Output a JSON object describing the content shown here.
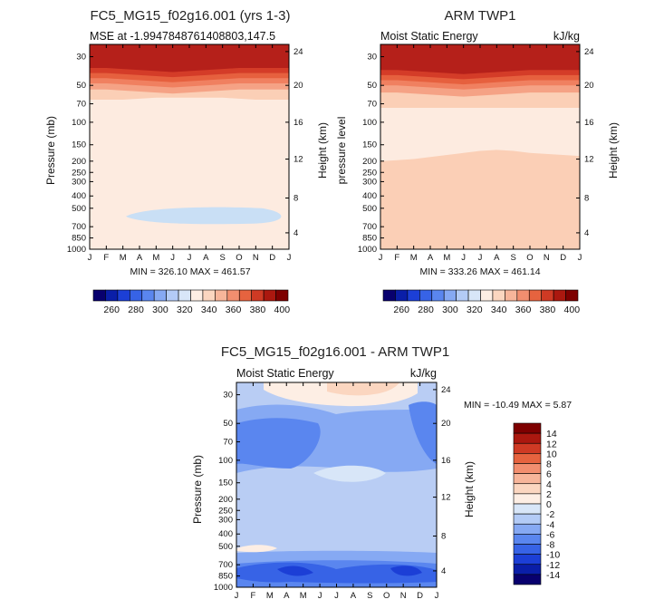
{
  "chart_data": [
    {
      "type": "heatmap",
      "title": "FC5_MG15_f02g16.001 (yrs 1-3)",
      "subtitle_left": "MSE at -1.9947848761408803,147.5",
      "subtitle_right": "",
      "ylabel_left": "Pressure (mb)",
      "ylabel_right": "Height (km)",
      "x_ticks": [
        "J",
        "F",
        "M",
        "A",
        "M",
        "J",
        "J",
        "A",
        "S",
        "O",
        "N",
        "D",
        "J"
      ],
      "y_ticks": [
        "30",
        "50",
        "70",
        "100",
        "150",
        "200",
        "250",
        "300",
        "400",
        "500",
        "700",
        "850",
        "1000"
      ],
      "height_ticks": [
        "24",
        "20",
        "16",
        "12",
        "8",
        "4"
      ],
      "stats": "MIN = 326.10 MAX = 461.57",
      "colorbar_labels": [
        "260",
        "280",
        "300",
        "320",
        "340",
        "360",
        "380",
        "400"
      ],
      "bands": [
        {
          "fill": "#c9dff5",
          "top": [
            0.845,
            0.84,
            0.835,
            0.83,
            0.83,
            0.83,
            0.83,
            0.83,
            0.835,
            0.835,
            0.84,
            0.845,
            0.85
          ],
          "shape": "blob"
        },
        {
          "fill": "#fdebe0",
          "top": [
            0.52,
            0.51,
            0.51,
            0.5,
            0.49,
            0.48,
            0.47,
            0.47,
            0.47,
            0.47,
            0.48,
            0.48,
            0.48
          ]
        },
        {
          "fill": "#fbcfb6",
          "top": [
            0.27,
            0.27,
            0.27,
            0.265,
            0.26,
            0.26,
            0.26,
            0.26,
            0.26,
            0.265,
            0.27,
            0.27,
            0.27
          ]
        },
        {
          "fill": "#f5a285",
          "top": [
            0.22,
            0.22,
            0.225,
            0.23,
            0.235,
            0.24,
            0.235,
            0.23,
            0.225,
            0.22,
            0.22,
            0.22,
            0.22
          ]
        },
        {
          "fill": "#f08060",
          "top": [
            0.19,
            0.19,
            0.195,
            0.2,
            0.205,
            0.21,
            0.205,
            0.2,
            0.195,
            0.19,
            0.19,
            0.19,
            0.19
          ]
        },
        {
          "fill": "#e6603e",
          "top": [
            0.165,
            0.165,
            0.17,
            0.175,
            0.18,
            0.185,
            0.18,
            0.175,
            0.17,
            0.165,
            0.165,
            0.165,
            0.165
          ]
        },
        {
          "fill": "#d43c28",
          "top": [
            0.14,
            0.14,
            0.145,
            0.15,
            0.155,
            0.16,
            0.155,
            0.15,
            0.145,
            0.14,
            0.14,
            0.14,
            0.14
          ]
        },
        {
          "fill": "#b5201a",
          "top": [
            0.115,
            0.115,
            0.12,
            0.125,
            0.13,
            0.135,
            0.13,
            0.125,
            0.12,
            0.115,
            0.115,
            0.115,
            0.115
          ]
        },
        {
          "fill": "#880000",
          "top": [
            0.0,
            0.0,
            0.0,
            0.0,
            0.0,
            0.0,
            0.0,
            0.0,
            0.0,
            0.0,
            0.0,
            0.0,
            0.0
          ]
        }
      ]
    },
    {
      "type": "heatmap",
      "title": "ARM TWP1",
      "subtitle_left": "Moist Static Energy",
      "subtitle_right": "kJ/kg",
      "ylabel_left": "pressure level",
      "ylabel_right": "Height (km)",
      "x_ticks": [
        "J",
        "F",
        "M",
        "A",
        "M",
        "J",
        "J",
        "A",
        "S",
        "O",
        "N",
        "D",
        "J"
      ],
      "y_ticks": [
        "30",
        "50",
        "70",
        "100",
        "150",
        "200",
        "250",
        "300",
        "400",
        "500",
        "700",
        "850",
        "1000"
      ],
      "height_ticks": [
        "24",
        "20",
        "16",
        "12",
        "8",
        "4"
      ],
      "stats": "MIN = 333.26 MAX = 461.14",
      "colorbar_labels": [
        "260",
        "280",
        "300",
        "320",
        "340",
        "360",
        "380",
        "400"
      ],
      "bands": [
        {
          "fill": "#fbcfb6",
          "top": [
            0.93,
            0.93,
            0.935,
            0.925,
            0.93,
            0.935,
            0.935,
            0.935,
            0.935,
            0.94,
            0.94,
            0.935,
            0.935
          ]
        },
        {
          "fill": "#fdebe0",
          "top": [
            0.57,
            0.565,
            0.56,
            0.55,
            0.54,
            0.53,
            0.52,
            0.515,
            0.52,
            0.53,
            0.535,
            0.54,
            0.545
          ]
        },
        {
          "fill": "#fbcfb6",
          "top": [
            0.31,
            0.31,
            0.31,
            0.31,
            0.31,
            0.31,
            0.31,
            0.31,
            0.31,
            0.31,
            0.31,
            0.31,
            0.31
          ]
        },
        {
          "fill": "#f5a285",
          "top": [
            0.235,
            0.235,
            0.24,
            0.245,
            0.25,
            0.255,
            0.25,
            0.245,
            0.24,
            0.235,
            0.235,
            0.235,
            0.235
          ]
        },
        {
          "fill": "#f08060",
          "top": [
            0.2,
            0.2,
            0.205,
            0.21,
            0.215,
            0.22,
            0.215,
            0.21,
            0.205,
            0.2,
            0.2,
            0.2,
            0.2
          ]
        },
        {
          "fill": "#e6603e",
          "top": [
            0.175,
            0.175,
            0.18,
            0.185,
            0.19,
            0.195,
            0.19,
            0.185,
            0.18,
            0.175,
            0.175,
            0.175,
            0.175
          ]
        },
        {
          "fill": "#d43c28",
          "top": [
            0.15,
            0.15,
            0.155,
            0.16,
            0.165,
            0.17,
            0.165,
            0.16,
            0.155,
            0.15,
            0.15,
            0.15,
            0.15
          ]
        },
        {
          "fill": "#b5201a",
          "top": [
            0.125,
            0.125,
            0.13,
            0.135,
            0.14,
            0.145,
            0.14,
            0.135,
            0.13,
            0.125,
            0.125,
            0.125,
            0.125
          ]
        },
        {
          "fill": "#880000",
          "top": [
            0.0,
            0.0,
            0.0,
            0.0,
            0.0,
            0.0,
            0.0,
            0.0,
            0.0,
            0.0,
            0.0,
            0.0,
            0.0
          ]
        }
      ]
    },
    {
      "type": "heatmap",
      "title": "FC5_MG15_f02g16.001 - ARM TWP1",
      "subtitle_left": "Moist Static Energy",
      "subtitle_right": "kJ/kg",
      "ylabel_left": "Pressure (mb)",
      "ylabel_right": "Height (km)",
      "x_ticks": [
        "J",
        "F",
        "M",
        "A",
        "M",
        "J",
        "J",
        "A",
        "S",
        "O",
        "N",
        "D",
        "J"
      ],
      "y_ticks": [
        "30",
        "50",
        "70",
        "100",
        "150",
        "200",
        "250",
        "300",
        "400",
        "500",
        "700",
        "850",
        "1000"
      ],
      "height_ticks": [
        "24",
        "20",
        "16",
        "12",
        "8",
        "4"
      ],
      "stats": "MIN = -10.49 MAX =   5.87",
      "colorbar_labels": [
        "14",
        "12",
        "10",
        "8",
        "6",
        "4",
        "2",
        "0",
        "-2",
        "-4",
        "-6",
        "-8",
        "-10",
        "-12",
        "-14"
      ]
    }
  ]
}
